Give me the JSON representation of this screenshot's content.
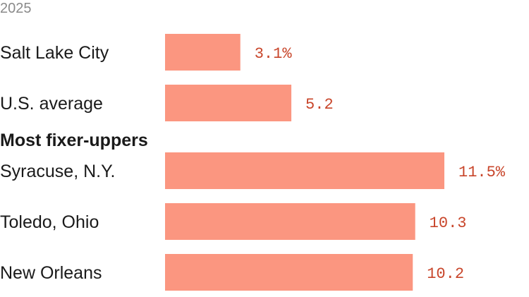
{
  "chart_data": {
    "type": "bar",
    "orientation": "horizontal",
    "subtitle": "2025",
    "bar_color": "#fb9680",
    "value_color": "#c8452a",
    "groups": [
      {
        "heading": "",
        "categories": [
          "Salt Lake City",
          "U.S. average"
        ],
        "values": [
          3.1,
          5.2
        ],
        "value_labels": [
          "3.1%",
          "5.2"
        ]
      },
      {
        "heading": "Most fixer-uppers",
        "categories": [
          "Syracuse, N.Y.",
          "Toledo, Ohio",
          "New Orleans"
        ],
        "values": [
          11.5,
          10.3,
          10.2
        ],
        "value_labels": [
          "11.5%",
          "10.3",
          "10.2"
        ]
      }
    ],
    "xlim": [
      0,
      11.5
    ],
    "grid": false,
    "legend": "none"
  }
}
